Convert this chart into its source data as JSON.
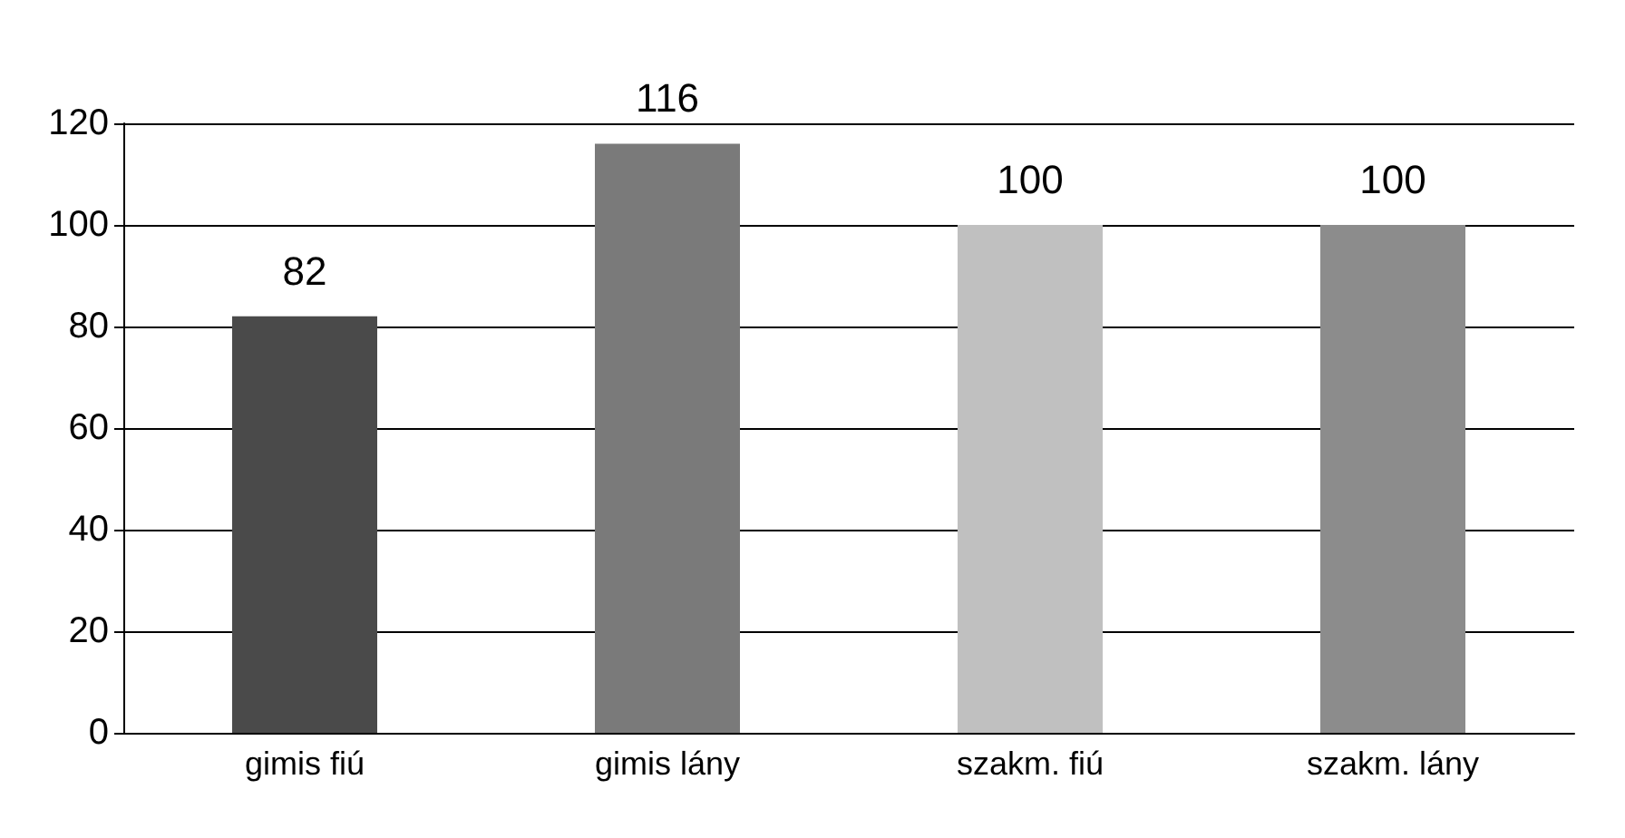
{
  "chart_data": {
    "type": "bar",
    "categories": [
      "gimis fiú",
      "gimis lány",
      "szakm. fiú",
      "szakm. lány"
    ],
    "values": [
      82,
      116,
      100,
      100
    ],
    "colors": [
      "#4a4a4a",
      "#7a7a7a",
      "#c0c0c0",
      "#8c8c8c"
    ],
    "ylim": [
      0,
      120
    ],
    "yticks": [
      0,
      20,
      40,
      60,
      80,
      100,
      120
    ],
    "grid": "y",
    "data_labels": true
  }
}
